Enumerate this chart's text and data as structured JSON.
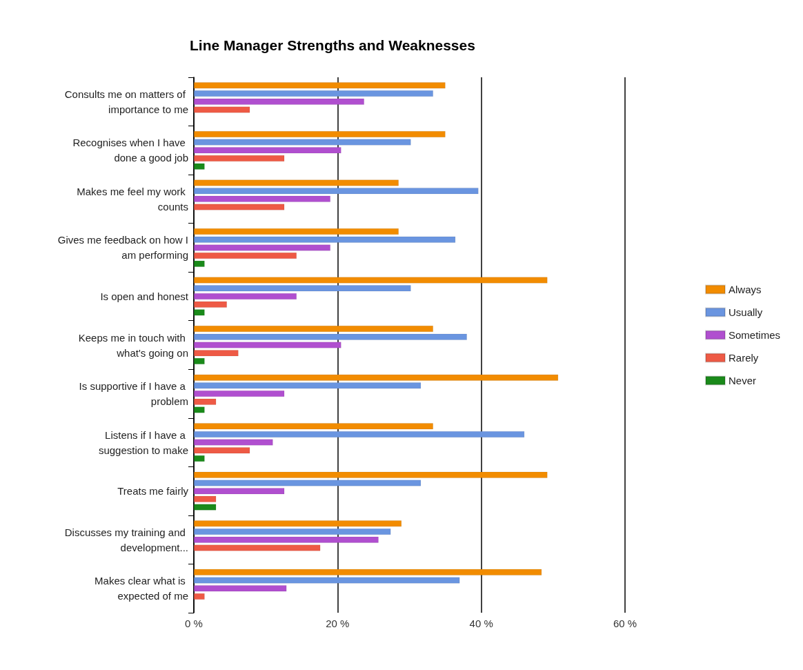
{
  "chart_data": {
    "type": "bar",
    "orientation": "horizontal",
    "title": "Line Manager Strengths and Weaknesses",
    "categories": [
      "Consults me on matters of importance to me",
      "Recognises when I have done a good job",
      "Makes me feel my work counts",
      "Gives me feedback on how I am performing",
      "Is open and honest",
      "Keeps me in touch with what's going on",
      "Is supportive if I have a problem",
      "Listens if I have a suggestion to make",
      "Treats me fairly",
      "Discusses my training and development...",
      "Makes clear what is expected of me"
    ],
    "series": [
      {
        "name": "Always",
        "color": "#f28c00",
        "values": [
          35,
          35,
          28.5,
          28.5,
          49.2,
          33.3,
          50.7,
          33.3,
          49.2,
          28.9,
          48.4
        ]
      },
      {
        "name": "Usually",
        "color": "#6a95e0",
        "values": [
          33.3,
          30.2,
          39.6,
          36.4,
          30.2,
          38,
          31.6,
          46,
          31.6,
          27.4,
          37
        ]
      },
      {
        "name": "Sometimes",
        "color": "#b04fcf",
        "values": [
          23.7,
          20.5,
          19,
          19,
          14.3,
          20.5,
          12.6,
          11,
          12.6,
          25.7,
          12.9
        ]
      },
      {
        "name": "Rarely",
        "color": "#ee5a45",
        "values": [
          7.8,
          12.6,
          12.6,
          14.3,
          4.6,
          6.2,
          3.1,
          7.8,
          3.1,
          17.6,
          1.5
        ]
      },
      {
        "name": "Never",
        "color": "#1a8a1a",
        "values": [
          null,
          1.5,
          null,
          1.5,
          1.5,
          1.5,
          1.5,
          1.5,
          3.1,
          null,
          null
        ]
      }
    ],
    "xlim": [
      0,
      60
    ],
    "xticks": [
      {
        "value": 0,
        "label": "0 %"
      },
      {
        "value": 20,
        "label": "20 %"
      },
      {
        "value": 40,
        "label": "40 %"
      },
      {
        "value": 60,
        "label": "60 %"
      }
    ],
    "grid": "x",
    "legend": "right"
  }
}
